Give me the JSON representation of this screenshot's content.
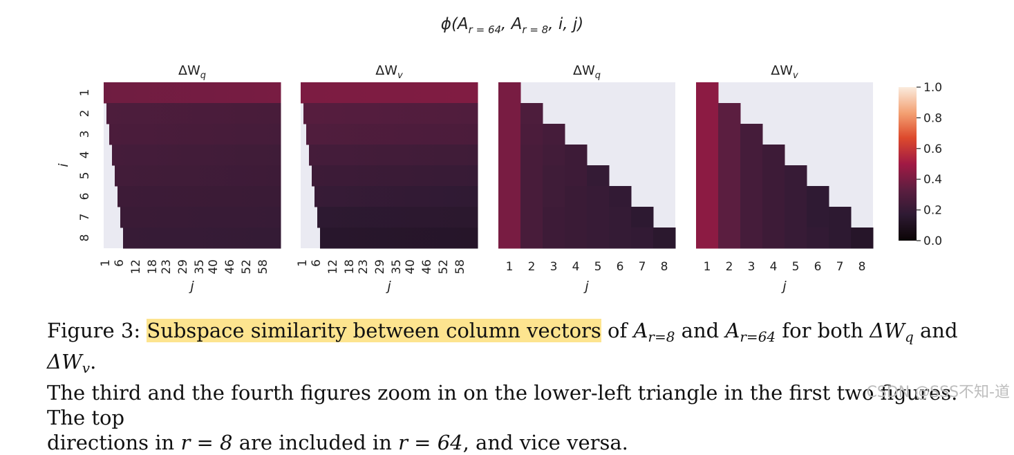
{
  "figure": {
    "suptitle": "φ(A_{r=64}, A_{r=8}, i, j)"
  },
  "chart_data": [
    {
      "type": "heatmap",
      "title": "ΔW_q",
      "xlabel": "j",
      "ylabel": "i",
      "y_tick_labels": [
        "1",
        "2",
        "3",
        "4",
        "5",
        "6",
        "7",
        "8"
      ],
      "x_tick_labels": [
        "1",
        "6",
        "12",
        "18",
        "23",
        "29",
        "35",
        "40",
        "46",
        "52",
        "58"
      ],
      "rows": [
        {
          "i": 1,
          "values": [
            0.38,
            0.4
          ]
        },
        {
          "i": 2,
          "values": [
            0.28,
            0.26
          ]
        },
        {
          "i": 3,
          "values": [
            0.27,
            0.25
          ]
        },
        {
          "i": 4,
          "values": [
            0.25,
            0.23
          ]
        },
        {
          "i": 5,
          "values": [
            0.24,
            0.22
          ]
        },
        {
          "i": 6,
          "values": [
            0.22,
            0.21
          ]
        },
        {
          "i": 7,
          "values": [
            0.21,
            0.2
          ]
        },
        {
          "i": 8,
          "values": [
            0.2,
            0.19
          ]
        }
      ],
      "mask_start_j": [
        1,
        2,
        3,
        4,
        5,
        6,
        7,
        8
      ],
      "zlim": [
        0,
        1
      ]
    },
    {
      "type": "heatmap",
      "title": "ΔW_v",
      "xlabel": "j",
      "ylabel": "",
      "y_tick_labels": [],
      "x_tick_labels": [
        "1",
        "6",
        "12",
        "18",
        "23",
        "29",
        "35",
        "40",
        "46",
        "52",
        "58"
      ],
      "rows": [
        {
          "i": 1,
          "values": [
            0.41,
            0.42
          ]
        },
        {
          "i": 2,
          "values": [
            0.31,
            0.29
          ]
        },
        {
          "i": 3,
          "values": [
            0.29,
            0.27
          ]
        },
        {
          "i": 4,
          "values": [
            0.25,
            0.23
          ]
        },
        {
          "i": 5,
          "values": [
            0.22,
            0.2
          ]
        },
        {
          "i": 6,
          "values": [
            0.2,
            0.17
          ]
        },
        {
          "i": 7,
          "values": [
            0.16,
            0.15
          ]
        },
        {
          "i": 8,
          "values": [
            0.14,
            0.13
          ]
        }
      ],
      "mask_start_j": [
        1,
        2,
        3,
        4,
        5,
        6,
        7,
        8
      ],
      "zlim": [
        0,
        1
      ]
    },
    {
      "type": "heatmap",
      "title": "ΔW_q",
      "xlabel": "j",
      "ylabel": "",
      "y_tick_labels": [],
      "x_tick_labels": [
        "1",
        "2",
        "3",
        "4",
        "5",
        "6",
        "7",
        "8"
      ],
      "matrix": [
        [
          0.4,
          null,
          null,
          null,
          null,
          null,
          null,
          null
        ],
        [
          0.4,
          0.28,
          null,
          null,
          null,
          null,
          null,
          null
        ],
        [
          0.4,
          0.27,
          0.25,
          null,
          null,
          null,
          null,
          null
        ],
        [
          0.4,
          0.26,
          0.24,
          0.22,
          null,
          null,
          null,
          null
        ],
        [
          0.4,
          0.26,
          0.23,
          0.22,
          0.19,
          null,
          null,
          null
        ],
        [
          0.4,
          0.26,
          0.23,
          0.21,
          0.2,
          0.18,
          null,
          null
        ],
        [
          0.4,
          0.26,
          0.22,
          0.21,
          0.2,
          0.19,
          0.16,
          null
        ],
        [
          0.4,
          0.26,
          0.22,
          0.21,
          0.2,
          0.19,
          0.18,
          0.15
        ]
      ],
      "zlim": [
        0,
        1
      ]
    },
    {
      "type": "heatmap",
      "title": "ΔW_v",
      "xlabel": "j",
      "ylabel": "",
      "y_tick_labels": [],
      "x_tick_labels": [
        "1",
        "2",
        "3",
        "4",
        "5",
        "6",
        "7",
        "8"
      ],
      "matrix": [
        [
          0.45,
          null,
          null,
          null,
          null,
          null,
          null,
          null
        ],
        [
          0.45,
          0.33,
          null,
          null,
          null,
          null,
          null,
          null
        ],
        [
          0.45,
          0.33,
          0.25,
          null,
          null,
          null,
          null,
          null
        ],
        [
          0.45,
          0.33,
          0.25,
          0.22,
          null,
          null,
          null,
          null
        ],
        [
          0.45,
          0.33,
          0.25,
          0.22,
          0.2,
          null,
          null,
          null
        ],
        [
          0.45,
          0.33,
          0.25,
          0.22,
          0.2,
          0.17,
          null,
          null
        ],
        [
          0.45,
          0.33,
          0.25,
          0.22,
          0.2,
          0.17,
          0.16,
          null
        ],
        [
          0.45,
          0.33,
          0.25,
          0.22,
          0.2,
          0.18,
          0.16,
          0.13
        ]
      ],
      "zlim": [
        0,
        1
      ]
    }
  ],
  "colorbar": {
    "tick_labels": [
      "1.0",
      "0.8",
      "0.6",
      "0.4",
      "0.2",
      "0.0"
    ],
    "colors": [
      "#0b0405",
      "#2e1a33",
      "#5c1e40",
      "#a11a44",
      "#dd4a2c",
      "#f3a072",
      "#faebdd"
    ]
  },
  "caption": {
    "fig_label": "Figure 3:",
    "highlight": "Subspace similarity between column vectors",
    "of_text": "of",
    "a_r8": "A",
    "a_r8_sub": "r=8",
    "and_text": "and",
    "a_r64": "A",
    "a_r64_sub": "r=64",
    "both_text": "for both",
    "dwq": "ΔW",
    "dwq_sub": "q",
    "and2": "and",
    "dwv": "ΔW",
    "dwv_sub": "v",
    "period": ".",
    "line2": "The third and the fourth figures zoom in on the lower-left triangle in the first two figures. The top",
    "line3_a": "directions in",
    "r8": "r = 8",
    "line3_b": "are included in",
    "r64": "r = 64",
    "line3_c": ", and vice versa."
  },
  "watermark": "CSDN @SSS不知-道"
}
